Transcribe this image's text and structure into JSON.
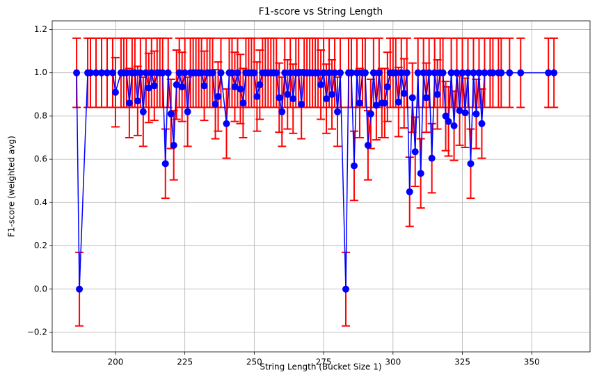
{
  "chart_data": {
    "type": "errorbar",
    "title": "F1-score vs String Length",
    "xlabel": "String Length (Bucket Size 1)",
    "ylabel": "F1-score (weighted avg)",
    "x": [
      186,
      187,
      190,
      191,
      193,
      195,
      197,
      199,
      200,
      202,
      203,
      204,
      205,
      206,
      207,
      208,
      209,
      210,
      211,
      212,
      213,
      214,
      215,
      216,
      217,
      218,
      219,
      220,
      221,
      222,
      223,
      224,
      225,
      226,
      227,
      228,
      229,
      230,
      231,
      232,
      233,
      234,
      235,
      236,
      237,
      238,
      240,
      241,
      242,
      243,
      244,
      245,
      246,
      247,
      248,
      249,
      250,
      251,
      252,
      253,
      254,
      255,
      256,
      257,
      258,
      259,
      260,
      261,
      262,
      263,
      264,
      265,
      266,
      267,
      268,
      269,
      270,
      271,
      272,
      273,
      274,
      275,
      276,
      277,
      278,
      279,
      280,
      281,
      283,
      284,
      285,
      286,
      287,
      288,
      289,
      290,
      291,
      292,
      293,
      294,
      295,
      296,
      297,
      298,
      299,
      300,
      301,
      302,
      303,
      304,
      305,
      306,
      307,
      308,
      309,
      310,
      311,
      312,
      313,
      314,
      315,
      316,
      317,
      318,
      319,
      320,
      321,
      322,
      323,
      324,
      325,
      326,
      327,
      328,
      329,
      330,
      331,
      332,
      333,
      335,
      336,
      338,
      339,
      342,
      346,
      356,
      358
    ],
    "values": [
      1,
      0,
      1,
      1,
      1,
      1,
      1,
      1,
      0.91,
      1,
      1,
      1,
      0.86,
      1,
      1,
      0.87,
      1,
      0.82,
      1,
      0.93,
      1,
      0.94,
      1,
      1,
      1,
      0.58,
      1,
      0.81,
      0.665,
      0.945,
      1,
      0.935,
      1,
      0.82,
      1,
      1,
      1,
      1,
      1,
      0.94,
      1,
      1,
      1,
      0.855,
      0.89,
      1,
      0.765,
      1,
      1,
      0.935,
      1,
      0.925,
      0.86,
      1,
      1,
      1,
      1,
      0.89,
      0.945,
      1,
      1,
      1,
      1,
      1,
      1,
      0.885,
      0.82,
      1,
      0.9,
      1,
      0.88,
      1,
      1,
      0.855,
      1,
      1,
      1,
      1,
      1,
      1,
      0.945,
      1,
      0.88,
      1,
      0.9,
      1,
      0.82,
      1,
      0,
      1,
      1,
      0.57,
      1,
      0.86,
      1,
      1,
      0.665,
      0.81,
      1,
      0.85,
      1,
      0.86,
      0.86,
      0.935,
      1,
      1,
      1,
      0.865,
      1,
      0.905,
      1,
      0.45,
      0.885,
      0.635,
      1,
      0.535,
      1,
      0.885,
      1,
      0.605,
      1,
      0.9,
      1,
      1,
      0.8,
      0.775,
      1,
      0.755,
      1,
      0.825,
      1,
      0.815,
      1,
      0.58,
      1,
      0.81,
      1,
      0.765,
      1,
      1,
      1,
      1,
      1,
      1,
      1,
      1,
      1
    ],
    "errors": [
      0.16,
      0.17,
      0.16,
      0.16,
      0.16,
      0.16,
      0.16,
      0.16,
      0.16,
      0.16,
      0.16,
      0.16,
      0.16,
      0.16,
      0.16,
      0.16,
      0.16,
      0.16,
      0.16,
      0.16,
      0.16,
      0.16,
      0.16,
      0.16,
      0.16,
      0.16,
      0.16,
      0.16,
      0.16,
      0.16,
      0.16,
      0.16,
      0.16,
      0.16,
      0.16,
      0.16,
      0.16,
      0.16,
      0.16,
      0.16,
      0.16,
      0.16,
      0.16,
      0.16,
      0.16,
      0.16,
      0.16,
      0.16,
      0.16,
      0.16,
      0.16,
      0.16,
      0.16,
      0.16,
      0.16,
      0.16,
      0.16,
      0.16,
      0.16,
      0.16,
      0.16,
      0.16,
      0.16,
      0.16,
      0.16,
      0.16,
      0.16,
      0.16,
      0.16,
      0.16,
      0.16,
      0.16,
      0.16,
      0.16,
      0.16,
      0.16,
      0.16,
      0.16,
      0.16,
      0.16,
      0.16,
      0.16,
      0.16,
      0.16,
      0.16,
      0.16,
      0.16,
      0.16,
      0.17,
      0.16,
      0.16,
      0.16,
      0.16,
      0.16,
      0.16,
      0.16,
      0.16,
      0.16,
      0.16,
      0.16,
      0.16,
      0.16,
      0.16,
      0.16,
      0.16,
      0.16,
      0.16,
      0.16,
      0.16,
      0.16,
      0.16,
      0.16,
      0.16,
      0.16,
      0.16,
      0.16,
      0.16,
      0.16,
      0.16,
      0.16,
      0.16,
      0.16,
      0.16,
      0.16,
      0.16,
      0.16,
      0.16,
      0.16,
      0.16,
      0.16,
      0.16,
      0.16,
      0.16,
      0.16,
      0.16,
      0.16,
      0.16,
      0.16,
      0.16,
      0.16,
      0.16,
      0.16,
      0.16,
      0.16,
      0.16,
      0.16,
      0.16
    ],
    "line_color": "#0000ff",
    "marker_color": "#0000ff",
    "error_color": "#ff0000",
    "xlim": [
      177.2,
      371
    ],
    "ylim": [
      -0.29,
      1.24
    ],
    "xticks": [
      200,
      225,
      250,
      275,
      300,
      325,
      350
    ],
    "yticks": [
      {
        "value": -0.2,
        "label": "−0.2"
      },
      {
        "value": 0,
        "label": "0.0"
      },
      0.2,
      0.4,
      0.6,
      0.8,
      {
        "value": 1,
        "label": "1.0"
      },
      1.2
    ],
    "grid": true
  }
}
